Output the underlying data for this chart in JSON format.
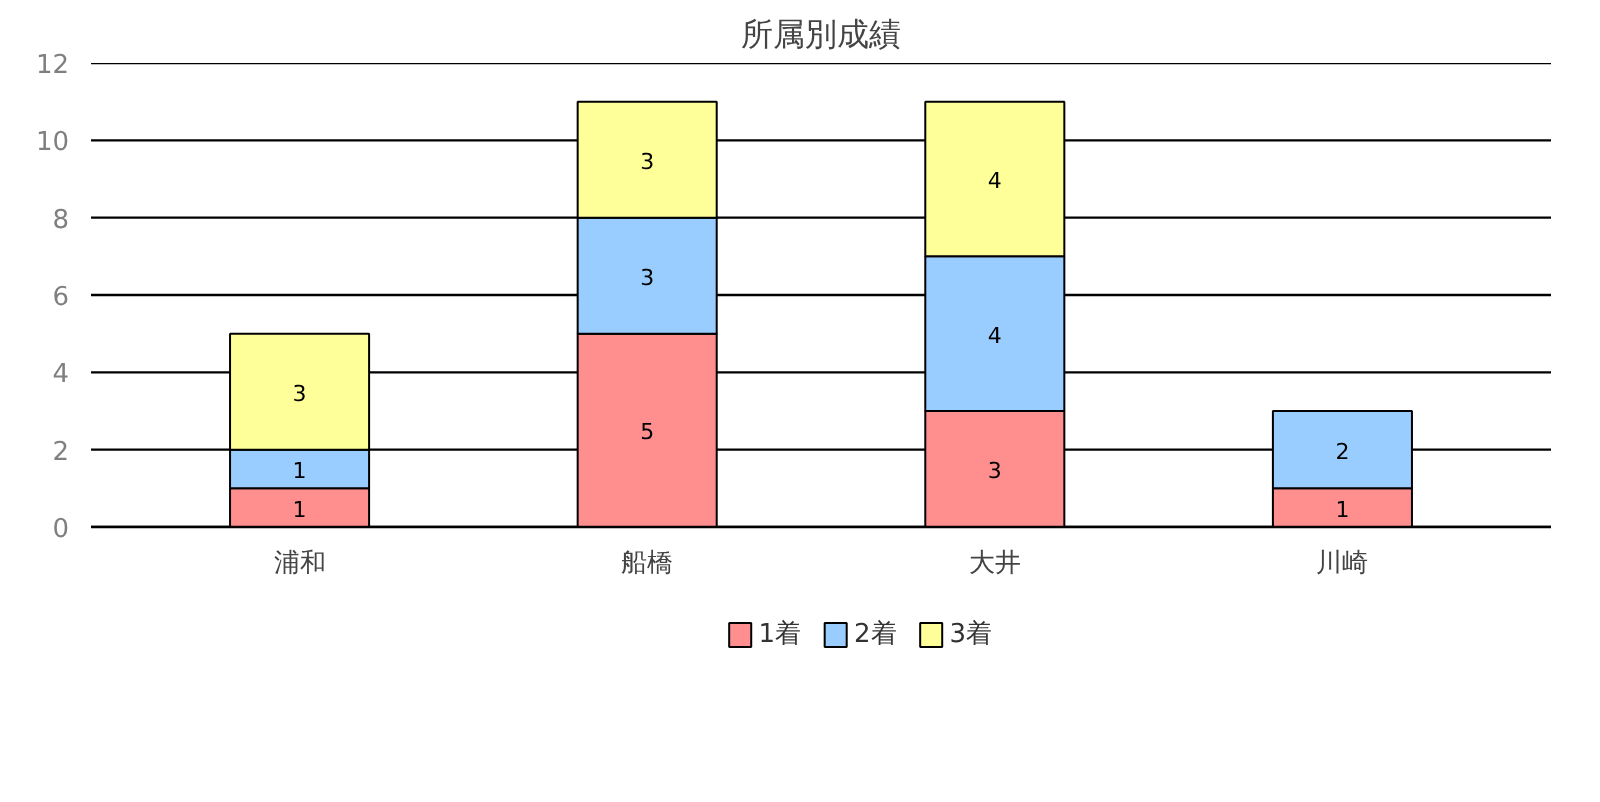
{
  "chart_data": {
    "type": "bar",
    "title": "所属別成績",
    "stacked": true,
    "categories": [
      "浦和",
      "船橋",
      "大井",
      "川崎"
    ],
    "series": [
      {
        "name": "1着",
        "color": "#ff8f8f",
        "values": [
          1,
          5,
          3,
          1
        ]
      },
      {
        "name": "2着",
        "color": "#99ccff",
        "values": [
          1,
          3,
          4,
          2
        ]
      },
      {
        "name": "3着",
        "color": "#ffff99",
        "values": [
          3,
          3,
          4,
          null
        ]
      }
    ],
    "ylim": [
      0,
      12
    ],
    "yticks": [
      0,
      2,
      4,
      6,
      8,
      10,
      12
    ],
    "grid": "y",
    "legend": "bottom",
    "data_labels": true
  }
}
